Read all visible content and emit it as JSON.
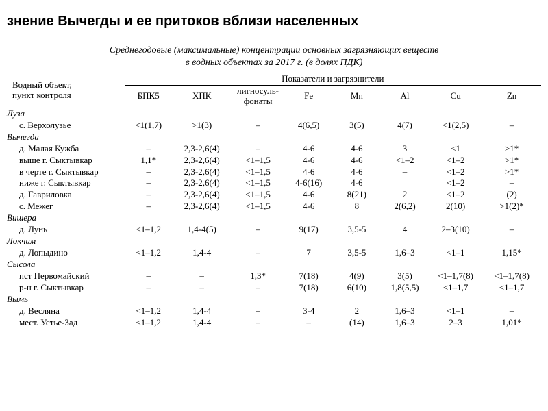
{
  "title": "знение Вычегды и ее притоков вблизи населенных",
  "caption_line1": "Среднегодовые (максимальные) концентрации основных загрязняющих веществ",
  "caption_line2": "в водных объектах за 2017 г. (в долях ПДК)",
  "header": {
    "obj": "Водный объект,\nпункт контроля",
    "group": "Показатели и загрязнители",
    "cols": [
      "БПК5",
      "ХПК",
      "лигносуль-\nфонаты",
      "Fe",
      "Mn",
      "Al",
      "Cu",
      "Zn"
    ]
  },
  "groups": [
    {
      "name": "Луза",
      "rows": [
        {
          "label": "с. Верхолузье",
          "v": [
            "<1(1,7)",
            ">1(3)",
            "–",
            "4(6,5)",
            "3(5)",
            "4(7)",
            "<1(2,5)",
            "–"
          ]
        }
      ]
    },
    {
      "name": "Вычегда",
      "rows": [
        {
          "label": "д. Малая Кужба",
          "v": [
            "–",
            "2,3-2,6(4)",
            "–",
            "4-6",
            "4-6",
            "3",
            "<1",
            ">1*"
          ]
        },
        {
          "label": "выше г. Сыктывкар",
          "v": [
            "1,1*",
            "2,3-2,6(4)",
            "<1–1,5",
            "4-6",
            "4-6",
            "<1–2",
            "<1–2",
            ">1*"
          ]
        },
        {
          "label": "в черте г. Сыктывкар",
          "v": [
            "–",
            "2,3-2,6(4)",
            "<1–1,5",
            "4-6",
            "4-6",
            "–",
            "<1–2",
            ">1*"
          ]
        },
        {
          "label": "ниже г. Сыктывкар",
          "v": [
            "–",
            "2,3-2,6(4)",
            "<1–1,5",
            "4-6(16)",
            "4-6",
            "",
            "<1–2",
            "–"
          ]
        },
        {
          "label": "д. Гавриловка",
          "v": [
            "–",
            "2,3-2,6(4)",
            "<1–1,5",
            "4-6",
            "8(21)",
            "2",
            "<1–2",
            "(2)"
          ]
        },
        {
          "label": "с. Межег",
          "v": [
            "–",
            "2,3-2,6(4)",
            "<1–1,5",
            "4-6",
            "8",
            "2(6,2)",
            "2(10)",
            ">1(2)*"
          ]
        }
      ]
    },
    {
      "name": "Вишера",
      "rows": [
        {
          "label": "д. Лунь",
          "v": [
            "<1–1,2",
            "1,4-4(5)",
            "–",
            "9(17)",
            "3,5-5",
            "4",
            "2–3(10)",
            "–"
          ]
        }
      ]
    },
    {
      "name": "Локчим",
      "rows": [
        {
          "label": "д. Лопыдино",
          "v": [
            "<1–1,2",
            "1,4-4",
            "–",
            "7",
            "3,5-5",
            "1,6–3",
            "<1–1",
            "1,15*"
          ]
        }
      ]
    },
    {
      "name": "Сысола",
      "rows": [
        {
          "label": "пст Первомайский",
          "v": [
            "–",
            "–",
            "1,3*",
            "7(18)",
            "4(9)",
            "3(5)",
            "<1–1,7(8)",
            "<1–1,7(8)"
          ]
        },
        {
          "label": "р-н г. Сыктывкар",
          "v": [
            "–",
            "–",
            "–",
            "7(18)",
            "6(10)",
            "1,8(5,5)",
            "<1–1,7",
            "<1–1,7"
          ]
        }
      ]
    },
    {
      "name": "Вымь",
      "rows": [
        {
          "label": "д. Весляна",
          "v": [
            "<1–1,2",
            "1,4-4",
            "–",
            "3-4",
            "2",
            "1,6–3",
            "<1–1",
            "–"
          ]
        },
        {
          "label": "мест. Устье-Зад",
          "v": [
            "<1–1,2",
            "1,4-4",
            "–",
            "–",
            "(14)",
            "1,6–3",
            "2–3",
            "1,01*"
          ]
        }
      ]
    }
  ],
  "col_widths_pct": [
    22,
    9,
    11,
    10,
    9,
    9,
    9,
    10,
    11
  ]
}
